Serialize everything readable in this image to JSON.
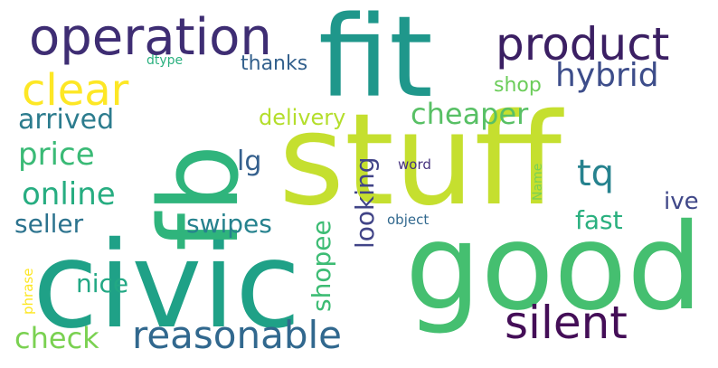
{
  "words": [
    {
      "text": "stuff",
      "color": "#c5df2f"
    },
    {
      "text": "fit",
      "color": "#1f978b"
    },
    {
      "text": "good",
      "color": "#45bf70"
    },
    {
      "text": "civic",
      "color": "#1fa187"
    },
    {
      "text": "fb",
      "color": "#2fb47c"
    },
    {
      "text": "operation",
      "color": "#3e2d73"
    },
    {
      "text": "product",
      "color": "#3b1f63"
    },
    {
      "text": "clear",
      "color": "#fde725"
    },
    {
      "text": "hybrid",
      "color": "#3d4d8a"
    },
    {
      "text": "silent",
      "color": "#440e57"
    },
    {
      "text": "reasonable",
      "color": "#31688e"
    },
    {
      "text": "check",
      "color": "#7ad151"
    },
    {
      "text": "cheaper",
      "color": "#58c065"
    },
    {
      "text": "arrived",
      "color": "#2c7c8e"
    },
    {
      "text": "delivery",
      "color": "#b4de2c"
    },
    {
      "text": "price",
      "color": "#3aba76"
    },
    {
      "text": "online",
      "color": "#27ad81"
    },
    {
      "text": "seller",
      "color": "#2c738e"
    },
    {
      "text": "swipes",
      "color": "#26828e"
    },
    {
      "text": "lg",
      "color": "#35608d"
    },
    {
      "text": "tq",
      "color": "#26828e"
    },
    {
      "text": "fast",
      "color": "#2ab07f"
    },
    {
      "text": "ive",
      "color": "#3f4788"
    },
    {
      "text": "nice",
      "color": "#22a884"
    },
    {
      "text": "shopee",
      "color": "#3dbc74"
    },
    {
      "text": "looking",
      "color": "#414487"
    },
    {
      "text": "thanks",
      "color": "#34618d"
    },
    {
      "text": "shop",
      "color": "#6ccd5a"
    },
    {
      "text": "dtype",
      "color": "#2ab07f"
    },
    {
      "text": "word",
      "color": "#46327e"
    },
    {
      "text": "object",
      "color": "#31688e"
    },
    {
      "text": "Name",
      "color": "#7ad151"
    },
    {
      "text": "phrase",
      "color": "#fde725"
    }
  ]
}
